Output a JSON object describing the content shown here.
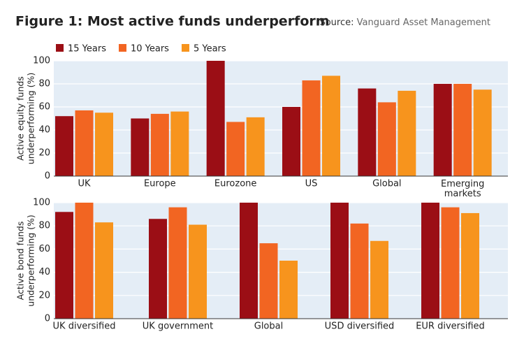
{
  "title": "Figure 1: Most active funds underperform",
  "source_label": "Source:",
  "source": "Vanguard Asset Management",
  "chart_data": [
    {
      "type": "bar",
      "y_label": [
        "Active equity funds",
        "underperforming (%)"
      ],
      "categories": [
        "UK",
        "Europe",
        "Eurozone",
        "US",
        "Global",
        "Emerging\nmarkets"
      ],
      "series": [
        {
          "name": "15 Years",
          "color": "#9b0e15",
          "values": [
            52,
            50,
            100,
            60,
            76,
            80
          ]
        },
        {
          "name": "10 Years",
          "color": "#f26522",
          "values": [
            57,
            54,
            47,
            83,
            64,
            80
          ]
        },
        {
          "name": "5 Years",
          "color": "#f7941d",
          "values": [
            55,
            56,
            51,
            87,
            74,
            75
          ]
        }
      ],
      "ylim": [
        0,
        100
      ],
      "yticks": [
        0,
        20,
        40,
        60,
        80,
        100
      ],
      "grid": true
    },
    {
      "type": "bar",
      "y_label": [
        "Active bond funds",
        "underperforming (%)"
      ],
      "categories": [
        "UK diversified",
        "UK government",
        "Global",
        "USD diversified",
        "EUR diversified"
      ],
      "series": [
        {
          "color": "#9b0e15",
          "values": [
            92,
            86,
            100,
            100,
            100
          ]
        },
        {
          "color": "#f26522",
          "values": [
            100,
            96,
            65,
            82,
            96
          ]
        },
        {
          "color": "#f7941d",
          "values": [
            83,
            81,
            50,
            67,
            91
          ]
        }
      ],
      "ylim": [
        0,
        100
      ],
      "yticks": [
        0,
        20,
        40,
        60,
        80,
        100
      ],
      "grid": true
    }
  ]
}
